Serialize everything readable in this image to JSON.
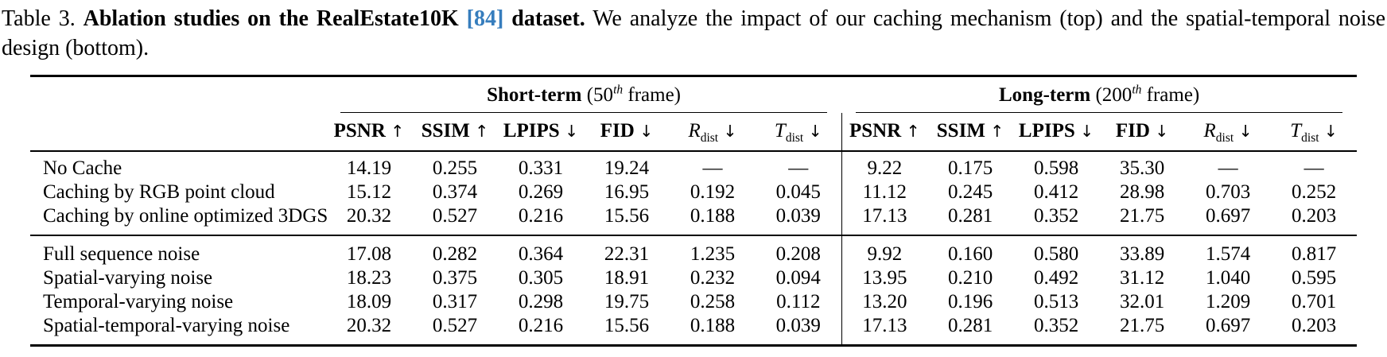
{
  "caption": {
    "prefix": "Table 3. ",
    "bold_1": "Ablation studies on the RealEstate10K ",
    "citation": "[84]",
    "bold_2": " dataset.",
    "text": "We analyze the impact of our caching mechanism (top) and the spatial-temporal noise design (bottom)."
  },
  "colors": {
    "citation_blue": "#367dbd",
    "rule_black": "#000000"
  },
  "table": {
    "group_headers": [
      {
        "bold": "Short-term",
        "pre": " (50",
        "sup": "th",
        "post": " frame)"
      },
      {
        "bold": "Long-term",
        "pre": " (200",
        "sup": "th",
        "post": " frame)"
      }
    ],
    "metric_columns": [
      {
        "label": "PSNR",
        "arrow": "↑",
        "style": "bold"
      },
      {
        "label": "SSIM",
        "arrow": "↑",
        "style": "bold"
      },
      {
        "label": "LPIPS",
        "arrow": "↓",
        "style": "bold"
      },
      {
        "label": "FID",
        "arrow": "↓",
        "style": "bold"
      },
      {
        "label": "R",
        "sub": "dist",
        "arrow": "↓",
        "style": "math"
      },
      {
        "label": "T",
        "sub": "dist",
        "arrow": "↓",
        "style": "math"
      }
    ],
    "groups": [
      {
        "name": "caching-mechanism",
        "rows": [
          {
            "label": "No Cache",
            "short": [
              "14.19",
              "0.255",
              "0.331",
              "19.24",
              "—",
              "—"
            ],
            "long": [
              "9.22",
              "0.175",
              "0.598",
              "35.30",
              "—",
              "—"
            ]
          },
          {
            "label": "Caching by RGB point cloud",
            "short": [
              "15.12",
              "0.374",
              "0.269",
              "16.95",
              "0.192",
              "0.045"
            ],
            "long": [
              "11.12",
              "0.245",
              "0.412",
              "28.98",
              "0.703",
              "0.252"
            ]
          },
          {
            "label": "Caching by online optimized 3DGS",
            "short": [
              "20.32",
              "0.527",
              "0.216",
              "15.56",
              "0.188",
              "0.039"
            ],
            "long": [
              "17.13",
              "0.281",
              "0.352",
              "21.75",
              "0.697",
              "0.203"
            ]
          }
        ]
      },
      {
        "name": "noise-design",
        "rows": [
          {
            "label": "Full sequence noise",
            "short": [
              "17.08",
              "0.282",
              "0.364",
              "22.31",
              "1.235",
              "0.208"
            ],
            "long": [
              "9.92",
              "0.160",
              "0.580",
              "33.89",
              "1.574",
              "0.817"
            ]
          },
          {
            "label": "Spatial-varying noise",
            "short": [
              "18.23",
              "0.375",
              "0.305",
              "18.91",
              "0.232",
              "0.094"
            ],
            "long": [
              "13.95",
              "0.210",
              "0.492",
              "31.12",
              "1.040",
              "0.595"
            ]
          },
          {
            "label": "Temporal-varying noise",
            "short": [
              "18.09",
              "0.317",
              "0.298",
              "19.75",
              "0.258",
              "0.112"
            ],
            "long": [
              "13.20",
              "0.196",
              "0.513",
              "32.01",
              "1.209",
              "0.701"
            ]
          },
          {
            "label": "Spatial-temporal-varying noise",
            "short": [
              "20.32",
              "0.527",
              "0.216",
              "15.56",
              "0.188",
              "0.039"
            ],
            "long": [
              "17.13",
              "0.281",
              "0.352",
              "21.75",
              "0.697",
              "0.203"
            ]
          }
        ]
      }
    ]
  }
}
